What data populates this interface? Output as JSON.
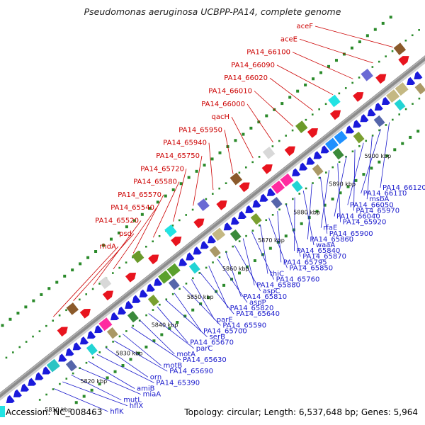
{
  "title": "Pseudomonas aeruginosa UCBPP-PA14, complete genome",
  "footer": {
    "accession": "Accession: NC_008463",
    "topology": "Topology: circular; Length: 6,537,648 bp; Genes: 5,964"
  },
  "colors": {
    "backbone": "#8a8a8a",
    "forward_strand": "#e8141e",
    "reverse_strand": "#1a1adb",
    "dots": "#2a8a2a",
    "label_forward": "#cc0000",
    "label_reverse": "#1a1acc"
  },
  "kbp_ticks": [
    {
      "label": "5810 kbp"
    },
    {
      "label": "5820 kbp"
    },
    {
      "label": "5830 kbp"
    },
    {
      "label": "5840 kbp"
    },
    {
      "label": "5850 kbp"
    },
    {
      "label": "5860 kbp"
    },
    {
      "label": "5870 kbp"
    },
    {
      "label": "5880 kbp"
    },
    {
      "label": "5890 kbp"
    },
    {
      "label": "5900 kbp"
    }
  ],
  "forward_labels": [
    {
      "label": "aceF"
    },
    {
      "label": "aceE"
    },
    {
      "label": "PA14_66100"
    },
    {
      "label": "PA14_66090"
    },
    {
      "label": "PA14_66020"
    },
    {
      "label": "PA14_66010"
    },
    {
      "label": "PA14_66000"
    },
    {
      "label": "qacH"
    },
    {
      "label": "PA14_65950"
    },
    {
      "label": "PA14_65940"
    },
    {
      "label": "PA14_65750"
    },
    {
      "label": "PA14_65720"
    },
    {
      "label": "PA14_65580"
    },
    {
      "label": "PA14_65570"
    },
    {
      "label": "PA14_65540"
    },
    {
      "label": "PA14_65520"
    },
    {
      "label": "psd"
    },
    {
      "label": "rhdA"
    }
  ],
  "reverse_labels": [
    {
      "label": "PA14_66120"
    },
    {
      "label": "PA14_66110"
    },
    {
      "label": "msbA"
    },
    {
      "label": "PA14_66050"
    },
    {
      "label": "PA14_65970"
    },
    {
      "label": "PA14_66040"
    },
    {
      "label": "PA14_65920"
    },
    {
      "label": "rfaE"
    },
    {
      "label": "PA14_65900"
    },
    {
      "label": "PA14_65860"
    },
    {
      "label": "waaA"
    },
    {
      "label": "PA14_65840"
    },
    {
      "label": "PA14_65870"
    },
    {
      "label": "PA14_65795"
    },
    {
      "label": "PA14_65850"
    },
    {
      "label": "thiC"
    },
    {
      "label": "PA14_65760"
    },
    {
      "label": "PA14_65880"
    },
    {
      "label": "aspC"
    },
    {
      "label": "PA14_65810"
    },
    {
      "label": "aspP"
    },
    {
      "label": "PA14_65820"
    },
    {
      "label": "PA14_65640"
    },
    {
      "label": "parE"
    },
    {
      "label": "PA14_65590"
    },
    {
      "label": "PA14_65700"
    },
    {
      "label": "serB"
    },
    {
      "label": "PA14_65670"
    },
    {
      "label": "parC"
    },
    {
      "label": "motA"
    },
    {
      "label": "PA14_65630"
    },
    {
      "label": "motB"
    },
    {
      "label": "PA14_65690"
    },
    {
      "label": "orn"
    },
    {
      "label": "PA14_65390"
    },
    {
      "label": "amiB"
    },
    {
      "label": "miaA"
    },
    {
      "label": "mutL"
    },
    {
      "label": "hflX"
    },
    {
      "label": "hflK"
    }
  ]
}
